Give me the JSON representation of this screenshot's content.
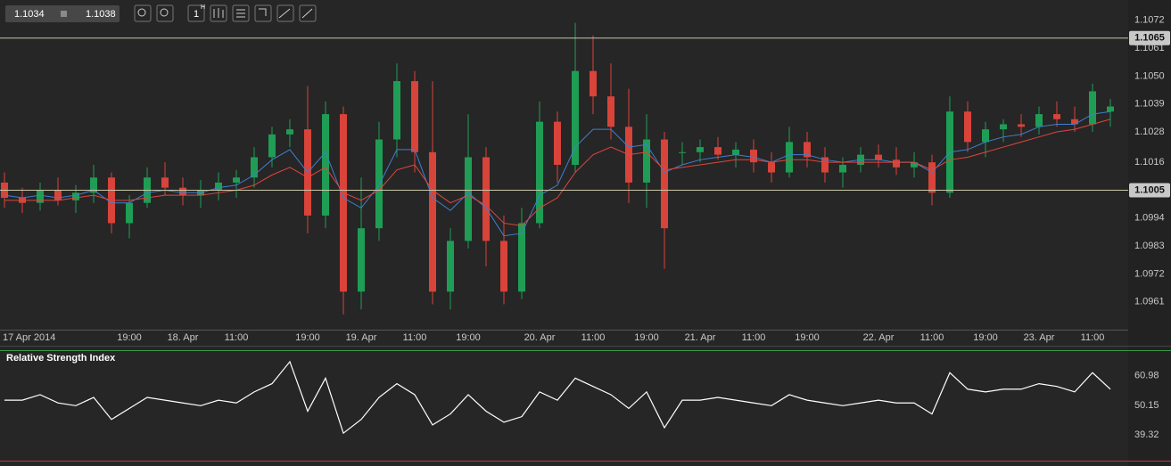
{
  "toolbar": {
    "bid": "1.1034",
    "ask": "1.1038",
    "interval": "1",
    "interval_unit": "H"
  },
  "chart_data": [
    {
      "type": "candlestick",
      "categories": [
        "17 Apr 2014",
        null,
        null,
        null,
        null,
        null,
        null,
        "19:00",
        null,
        null,
        "18. Apr",
        null,
        null,
        "11:00",
        null,
        null,
        null,
        "19:00",
        null,
        null,
        "19. Apr",
        null,
        null,
        "11:00",
        null,
        null,
        "19:00",
        null,
        null,
        null,
        "20. Apr",
        null,
        null,
        "11:00",
        null,
        null,
        "19:00",
        null,
        null,
        "21. Apr",
        null,
        null,
        "11:00",
        null,
        null,
        "19:00",
        null,
        null,
        null,
        "22. Apr",
        null,
        null,
        "11:00",
        null,
        null,
        "19:00",
        null,
        null,
        "23. Apr",
        null,
        null,
        "11:00",
        null
      ],
      "open": [
        1.1008,
        1.1002,
        1.1,
        1.1005,
        1.1001,
        1.1004,
        1.101,
        1.0992,
        1.1,
        1.101,
        1.1006,
        1.1003,
        1.1005,
        1.1008,
        1.101,
        1.1018,
        1.1027,
        1.1029,
        1.0995,
        1.1035,
        1.0965,
        1.099,
        1.1025,
        1.1048,
        1.102,
        1.0965,
        1.0985,
        1.1018,
        1.0985,
        1.0965,
        1.0992,
        1.1032,
        1.1015,
        1.1052,
        1.1042,
        1.103,
        1.1008,
        1.1025,
        1.102,
        1.102,
        1.1022,
        1.1019,
        1.1021,
        1.1016,
        1.1012,
        1.1024,
        1.1018,
        1.1012,
        1.1015,
        1.1019,
        1.1017,
        1.1014,
        1.1016,
        1.1004,
        1.1036,
        1.1024,
        1.1029,
        1.1031,
        1.103,
        1.1035,
        1.1033,
        1.1031,
        1.1036
      ],
      "high": [
        1.1012,
        1.1006,
        1.1008,
        1.101,
        1.1007,
        1.1015,
        1.1012,
        1.1003,
        1.1014,
        1.1016,
        1.101,
        1.1009,
        1.1012,
        1.1013,
        1.1022,
        1.103,
        1.1033,
        1.1046,
        1.104,
        1.1038,
        1.101,
        1.1032,
        1.1055,
        1.1052,
        1.1048,
        1.099,
        1.1035,
        1.1022,
        1.0995,
        1.0998,
        1.104,
        1.1036,
        1.1071,
        1.1066,
        1.1055,
        1.1045,
        1.1035,
        1.1028,
        1.1024,
        1.1025,
        1.1026,
        1.1024,
        1.1025,
        1.102,
        1.103,
        1.1028,
        1.1022,
        1.1018,
        1.1022,
        1.1023,
        1.1022,
        1.102,
        1.1019,
        1.1042,
        1.104,
        1.1032,
        1.1033,
        1.1035,
        1.1038,
        1.104,
        1.1038,
        1.1047,
        1.1041
      ],
      "low": [
        1.0998,
        1.0996,
        1.0997,
        1.0999,
        1.0996,
        1.1,
        1.0988,
        1.0986,
        1.0998,
        1.1003,
        1.0999,
        1.0998,
        1.1001,
        1.1002,
        1.1006,
        1.1014,
        1.1022,
        1.0988,
        1.099,
        1.0956,
        1.0958,
        1.0985,
        1.1018,
        1.1012,
        1.096,
        1.0958,
        1.0982,
        1.0975,
        1.096,
        1.0962,
        1.099,
        1.1008,
        1.1012,
        1.1035,
        1.1025,
        1.1,
        1.0998,
        1.0974,
        1.1015,
        1.1016,
        1.1017,
        1.1014,
        1.1012,
        1.1008,
        1.101,
        1.1014,
        1.1008,
        1.1006,
        1.1012,
        1.1014,
        1.1011,
        1.101,
        1.0999,
        1.1002,
        1.102,
        1.1018,
        1.1024,
        1.1026,
        1.1027,
        1.103,
        1.1028,
        1.1028,
        1.103
      ],
      "close": [
        1.1002,
        1.1,
        1.1005,
        1.1001,
        1.1004,
        1.101,
        1.0992,
        1.1,
        1.101,
        1.1006,
        1.1003,
        1.1005,
        1.1008,
        1.101,
        1.1018,
        1.1027,
        1.1029,
        1.0995,
        1.1035,
        1.0965,
        1.099,
        1.1025,
        1.1048,
        1.102,
        1.0965,
        1.0985,
        1.1018,
        1.0985,
        1.0965,
        1.0992,
        1.1032,
        1.1015,
        1.1052,
        1.1042,
        1.103,
        1.1008,
        1.1025,
        1.099,
        1.102,
        1.1022,
        1.1019,
        1.1021,
        1.1016,
        1.1012,
        1.1024,
        1.1018,
        1.1012,
        1.1015,
        1.1019,
        1.1017,
        1.1014,
        1.1016,
        1.1004,
        1.1036,
        1.1024,
        1.1029,
        1.1031,
        1.103,
        1.1035,
        1.1033,
        1.1031,
        1.1044,
        1.1038
      ],
      "up_color": "#1f9d55",
      "down_color": "#d8433a",
      "series": [
        {
          "color": "#3f7fd0",
          "values": [
            1.1003,
            1.1002,
            1.1003,
            1.1002,
            1.1003,
            1.1005,
            1.1,
            1.1,
            1.1004,
            1.1005,
            1.1004,
            1.1004,
            1.1006,
            1.1007,
            1.1011,
            1.1017,
            1.1021,
            1.1012,
            1.102,
            1.1002,
            1.0998,
            1.1007,
            1.1021,
            1.1021,
            1.1002,
            1.0997,
            1.1004,
            1.0998,
            1.0987,
            1.0988,
            1.1003,
            1.1007,
            1.1022,
            1.1029,
            1.1029,
            1.1022,
            1.1023,
            1.1012,
            1.1015,
            1.1017,
            1.1018,
            1.1019,
            1.1018,
            1.1016,
            1.1019,
            1.1019,
            1.1017,
            1.1016,
            1.1017,
            1.1017,
            1.1016,
            1.1016,
            1.1012,
            1.102,
            1.1021,
            1.1024,
            1.1026,
            1.1027,
            1.103,
            1.1031,
            1.1031,
            1.1035,
            1.1036
          ]
        },
        {
          "color": "#e0453d",
          "values": [
            1.1001,
            1.1001,
            1.1001,
            1.1001,
            1.1002,
            1.1003,
            1.1001,
            1.1001,
            1.1002,
            1.1003,
            1.1003,
            1.1003,
            1.1004,
            1.1005,
            1.1007,
            1.1011,
            1.1014,
            1.101,
            1.1014,
            1.1004,
            1.1001,
            1.1005,
            1.1013,
            1.1015,
            1.1005,
            1.1,
            1.1003,
            1.0999,
            1.0992,
            1.0991,
            1.0998,
            1.1002,
            1.1012,
            1.1019,
            1.1022,
            1.1019,
            1.102,
            1.1013,
            1.1014,
            1.1015,
            1.1016,
            1.1017,
            1.1017,
            1.1016,
            1.1017,
            1.1017,
            1.1016,
            1.1016,
            1.1016,
            1.1016,
            1.1016,
            1.1016,
            1.1013,
            1.1017,
            1.1018,
            1.102,
            1.1022,
            1.1024,
            1.1026,
            1.1028,
            1.1029,
            1.1031,
            1.1033
          ]
        }
      ],
      "ylim": [
        1.095,
        1.108
      ],
      "yticks": [
        1.1072,
        1.1061,
        {
          "value": 1.105,
          "label": "1.1050"
        },
        1.1039,
        1.1028,
        1.1016,
        1.1005,
        1.0994,
        1.0983,
        1.0972,
        1.0961
      ],
      "hlines": [
        1.1065,
        1.1005
      ],
      "hline_color": "#c9c6a8"
    },
    {
      "type": "line",
      "title": "Relative Strength Index",
      "series": [
        {
          "color": "#ffffff",
          "values": [
            52,
            52,
            54,
            51,
            50,
            53,
            45,
            49,
            53,
            52,
            51,
            50,
            52,
            51,
            55,
            58,
            66,
            48,
            60,
            40,
            45,
            53,
            58,
            54,
            43,
            47,
            54,
            48,
            44,
            46,
            55,
            52,
            60,
            57,
            54,
            49,
            55,
            42,
            52,
            52,
            53,
            52,
            51,
            50,
            54,
            52,
            51,
            50,
            51,
            52,
            51,
            51,
            47,
            62,
            56,
            55,
            56,
            56,
            58,
            57,
            55,
            62,
            56
          ]
        }
      ],
      "ylim": [
        29.7,
        70.5
      ],
      "yticks": [
        39.32,
        50.15,
        60.98
      ]
    }
  ]
}
